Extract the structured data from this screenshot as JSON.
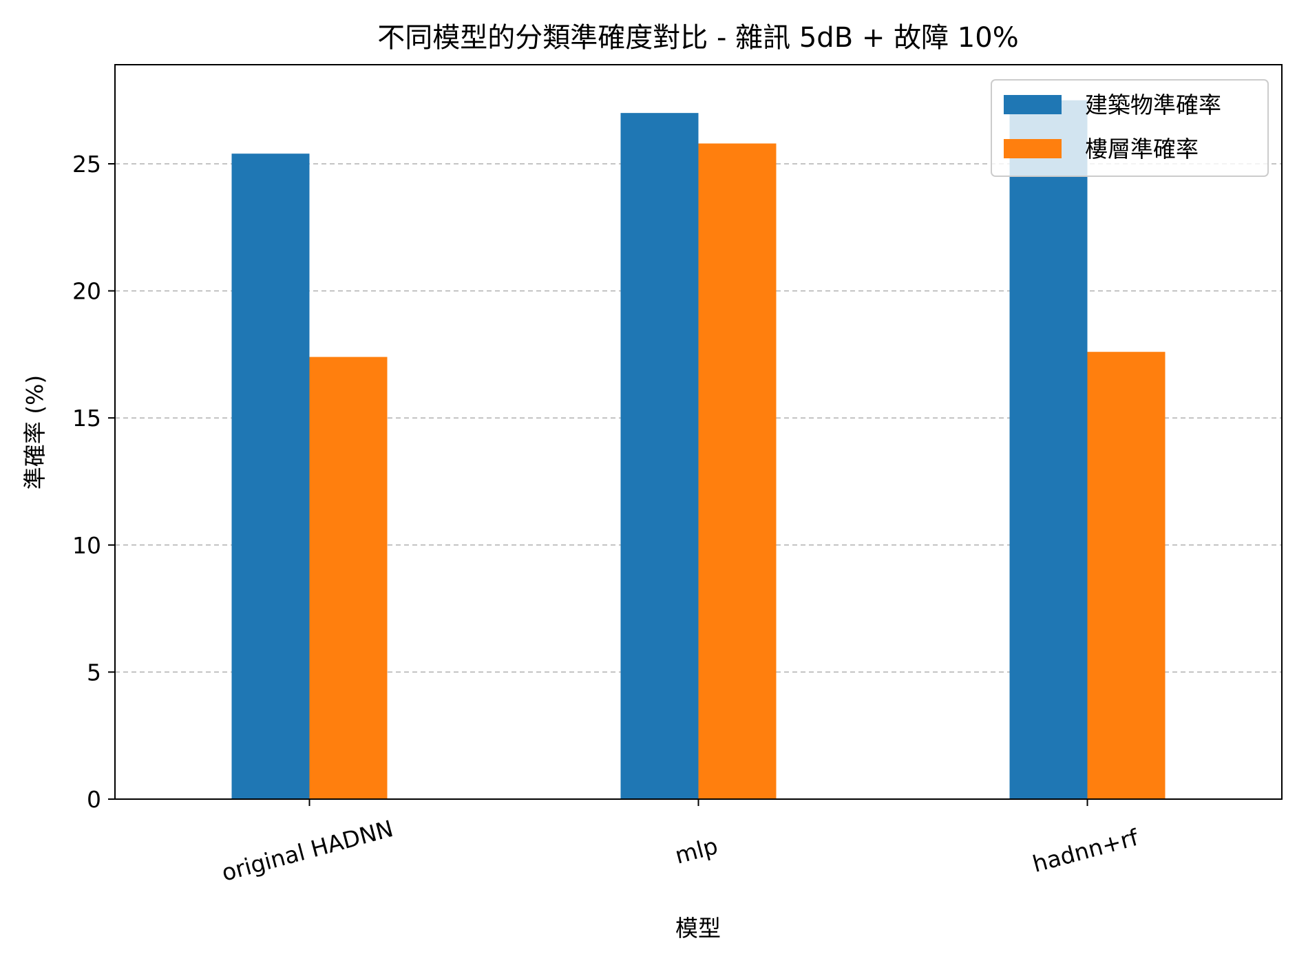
{
  "chart_data": {
    "type": "bar",
    "title": "不同模型的分類準確度對比 - 雜訊 5dB + 故障 10%",
    "xlabel": "模型",
    "ylabel": "準確率 (%)",
    "categories": [
      "original HADNN",
      "mlp",
      "hadnn+rf"
    ],
    "series": [
      {
        "name": "建築物準確率",
        "color": "#1f77b4",
        "values": [
          25.4,
          27.0,
          27.5
        ]
      },
      {
        "name": "樓層準確率",
        "color": "#ff7f0e",
        "values": [
          17.4,
          25.8,
          17.6
        ]
      }
    ],
    "ylim": [
      0,
      28.9
    ],
    "yticks": [
      0,
      5,
      10,
      15,
      20,
      25
    ],
    "grid": "y-dashed",
    "legend_position": "upper right"
  }
}
